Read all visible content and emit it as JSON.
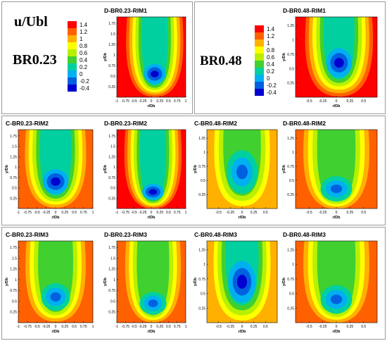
{
  "legend": {
    "title": "u/Ubl",
    "levels": [
      1.4,
      1.2,
      1,
      0.8,
      0.6,
      0.4,
      0.2,
      0,
      -0.2,
      -0.4
    ],
    "level_labels": [
      "1.4",
      "1.2",
      "1",
      "0.8",
      "0.6",
      "0.4",
      "0.2",
      "0",
      "-0.2",
      "-0.4"
    ],
    "colors": [
      "#ff0000",
      "#ff6000",
      "#ffb000",
      "#ffff00",
      "#b8f000",
      "#40d030",
      "#00d0a0",
      "#00b0f0",
      "#0060e0",
      "#0000d0"
    ]
  },
  "groups": [
    {
      "label": "BR0.23"
    },
    {
      "label": "BR0.48"
    }
  ],
  "panels": [
    {
      "title": "D-BR0.23-RIM1",
      "x_ticks": [
        "-1",
        "-0.75",
        "-0.5",
        "-0.25",
        "0",
        "0.25",
        "0.5",
        "0.75",
        "1"
      ],
      "y_ticks": [
        "0.25",
        "0.5",
        "0.75",
        "1",
        "1.25",
        "1.5",
        "1.75"
      ],
      "xlabel": "r/Db",
      "ylabel": "y/Db"
    },
    {
      "title": "D-BR0.48-RIM1",
      "x_ticks": [
        "-0.5",
        "-0.25",
        "0",
        "0.25",
        "0.5"
      ],
      "y_ticks": [
        "0.25",
        "0.5",
        "0.75",
        "1",
        "1.25"
      ],
      "xlabel": "r/Db",
      "ylabel": "y/Db"
    },
    {
      "title": "C-BR0.23-RIM2",
      "x_ticks": [
        "-1",
        "-0.75",
        "-0.5",
        "-0.25",
        "0",
        "0.25",
        "0.5",
        "0.75",
        "1"
      ],
      "y_ticks": [
        "0.25",
        "0.5",
        "0.75",
        "1",
        "1.25",
        "1.5",
        "1.75"
      ],
      "xlabel": "r/Db",
      "ylabel": "y/Db"
    },
    {
      "title": "D-BR0.23-RIM2",
      "x_ticks": [
        "-1",
        "-0.75",
        "-0.5",
        "-0.25",
        "0",
        "0.25",
        "0.5",
        "0.75",
        "1"
      ],
      "y_ticks": [
        "0.25",
        "0.5",
        "0.75",
        "1",
        "1.25",
        "1.5",
        "1.75"
      ],
      "xlabel": "r/Db",
      "ylabel": "y/Db"
    },
    {
      "title": "C-BR0.48-RIM2",
      "x_ticks": [
        "-0.5",
        "-0.25",
        "0",
        "0.25",
        "0.5"
      ],
      "y_ticks": [
        "0.25",
        "0.5",
        "0.75",
        "1",
        "1.25"
      ],
      "xlabel": "r/Db",
      "ylabel": "y/Db"
    },
    {
      "title": "D-BR0.48-RIM2",
      "x_ticks": [
        "-0.5",
        "-0.25",
        "0",
        "0.25",
        "0.5"
      ],
      "y_ticks": [
        "0.25",
        "0.5",
        "0.75",
        "1",
        "1.25"
      ],
      "xlabel": "r/Db",
      "ylabel": "y/Db"
    },
    {
      "title": "C-BR0.23-RIM3",
      "x_ticks": [
        "-1",
        "-0.75",
        "-0.5",
        "-0.25",
        "0",
        "0.25",
        "0.5",
        "0.75",
        "1"
      ],
      "y_ticks": [
        "0.25",
        "0.5",
        "0.75",
        "1",
        "1.25",
        "1.5",
        "1.75"
      ],
      "xlabel": "r/Db",
      "ylabel": "y/Db"
    },
    {
      "title": "D-BR0.23-RIM3",
      "x_ticks": [
        "-1",
        "-0.75",
        "-0.5",
        "-0.25",
        "0",
        "0.25",
        "0.5",
        "0.75",
        "1"
      ],
      "y_ticks": [
        "0.25",
        "0.5",
        "0.75",
        "1",
        "1.25",
        "1.5",
        "1.75"
      ],
      "xlabel": "r/Db",
      "ylabel": "y/Db"
    },
    {
      "title": "C-BR0.48-RIM3",
      "x_ticks": [
        "-0.5",
        "-0.25",
        "0",
        "0.25",
        "0.5"
      ],
      "y_ticks": [
        "0.25",
        "0.5",
        "0.75",
        "1",
        "1.25"
      ],
      "xlabel": "r/Db",
      "ylabel": "y/Db"
    },
    {
      "title": "D-BR0.48-RIM3",
      "x_ticks": [
        "-0.5",
        "-0.25",
        "0",
        "0.25",
        "0.5"
      ],
      "y_ticks": [
        "0.25",
        "0.5",
        "0.75",
        "1",
        "1.25"
      ],
      "xlabel": "r/Db",
      "ylabel": "y/Db"
    }
  ],
  "chart_data": {
    "type": "heatmap",
    "title": "",
    "colorbar_label": "u/Ubl",
    "colorbar_levels": [
      1.4,
      1.2,
      1,
      0.8,
      0.6,
      0.4,
      0.2,
      0,
      -0.2,
      -0.4
    ],
    "xlabel": "r/Db",
    "ylabel": "y/Db",
    "grid": false,
    "panels": [
      {
        "title": "D-BR0.23-RIM1",
        "xlim": [
          -1,
          1
        ],
        "ylim": [
          0,
          1.9
        ],
        "core_min": -0.4,
        "core_center": [
          0.1,
          0.55
        ],
        "edge_max": 1.4
      },
      {
        "title": "D-BR0.48-RIM1",
        "xlim": [
          -0.75,
          0.75
        ],
        "ylim": [
          0,
          1.4
        ],
        "core_min": -0.4,
        "core_center": [
          0.05,
          0.6
        ],
        "edge_max": 1.4
      },
      {
        "title": "C-BR0.23-RIM2",
        "xlim": [
          -1,
          1
        ],
        "ylim": [
          0,
          1.9
        ],
        "core_min": -0.4,
        "core_center": [
          0.0,
          0.65
        ],
        "edge_max": 1.2
      },
      {
        "title": "D-BR0.23-RIM2",
        "xlim": [
          -1,
          1
        ],
        "ylim": [
          0,
          1.9
        ],
        "core_min": -0.4,
        "core_center": [
          0.05,
          0.4
        ],
        "edge_max": 1.4
      },
      {
        "title": "C-BR0.48-RIM2",
        "xlim": [
          -0.75,
          0.75
        ],
        "ylim": [
          0,
          1.4
        ],
        "core_min": -0.2,
        "core_center": [
          0.0,
          0.65
        ],
        "edge_max": 1.0
      },
      {
        "title": "D-BR0.48-RIM2",
        "xlim": [
          -0.75,
          0.75
        ],
        "ylim": [
          0,
          1.4
        ],
        "core_min": -0.2,
        "core_center": [
          0.0,
          0.35
        ],
        "edge_max": 1.2
      },
      {
        "title": "C-BR0.23-RIM3",
        "xlim": [
          -1,
          1
        ],
        "ylim": [
          0,
          1.9
        ],
        "core_min": -0.2,
        "core_center": [
          0.0,
          0.6
        ],
        "edge_max": 1.2
      },
      {
        "title": "D-BR0.23-RIM3",
        "xlim": [
          -1,
          1
        ],
        "ylim": [
          0,
          1.9
        ],
        "core_min": -0.2,
        "core_center": [
          0.05,
          0.45
        ],
        "edge_max": 1.2
      },
      {
        "title": "C-BR0.48-RIM3",
        "xlim": [
          -0.75,
          0.75
        ],
        "ylim": [
          0,
          1.4
        ],
        "core_min": -0.4,
        "core_center": [
          0.0,
          0.7
        ],
        "edge_max": 1.0
      },
      {
        "title": "D-BR0.48-RIM3",
        "xlim": [
          -0.75,
          0.75
        ],
        "ylim": [
          0,
          1.4
        ],
        "core_min": -0.2,
        "core_center": [
          0.0,
          0.4
        ],
        "edge_max": 1.2
      }
    ]
  }
}
